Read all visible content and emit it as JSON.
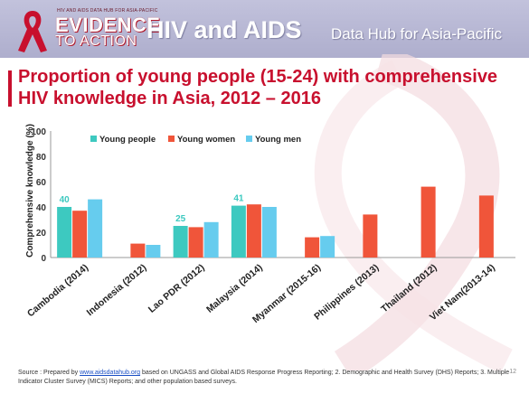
{
  "header": {
    "logo_small": "HIV AND AIDS DATA HUB FOR ASIA-PACIFIC",
    "logo_line1": "EVIDENCE",
    "logo_line2": "TO ACTION",
    "title": "HIV and AIDS",
    "subtitle": "Data Hub for Asia-Pacific"
  },
  "slide": {
    "title": "Proportion of young people (15-24) with comprehensive HIV knowledge in Asia, 2012 – 2016",
    "page_number": "12"
  },
  "source": {
    "prefix": "Source : Prepared by ",
    "link": "www.aidsdatahub.org",
    "suffix": " based on UNGASS and Global AIDS Response Progress Reporting; 2. Demographic and Health Survey (DHS) Reports; 3. Multiple Indicator Cluster Survey (MICS) Reports; and other population based surveys."
  },
  "colors": {
    "young_people": "#3dc9c0",
    "young_women": "#f0553a",
    "young_men": "#66ccee",
    "title_red": "#c8102e"
  },
  "chart_data": {
    "type": "bar",
    "ylabel": "Comprehensive knowledge (%)",
    "xlabel": "",
    "ylim": [
      0,
      100
    ],
    "yticks": [
      "0",
      "20",
      "40",
      "60",
      "80",
      "100"
    ],
    "legend_position": "top-left",
    "categories": [
      "Cambodia (2014)",
      "Indonesia (2012)",
      "Lao PDR (2012)",
      "Malaysia (2014)",
      "Myanmar (2015-16)",
      "Philippines (2013)",
      "Thailand (2012)",
      "Viet Nam(2013-14)"
    ],
    "series": [
      {
        "name": "Young people",
        "values": [
          40,
          null,
          25,
          41,
          null,
          null,
          null,
          null
        ]
      },
      {
        "name": "Young women",
        "values": [
          37,
          11,
          24,
          42,
          16,
          34,
          56,
          49
        ]
      },
      {
        "name": "Young men",
        "values": [
          46,
          10,
          28,
          40,
          17,
          null,
          null,
          null
        ]
      }
    ],
    "data_labels": [
      {
        "category_index": 0,
        "text": "40"
      },
      {
        "category_index": 2,
        "text": "25"
      },
      {
        "category_index": 3,
        "text": "41"
      }
    ]
  }
}
